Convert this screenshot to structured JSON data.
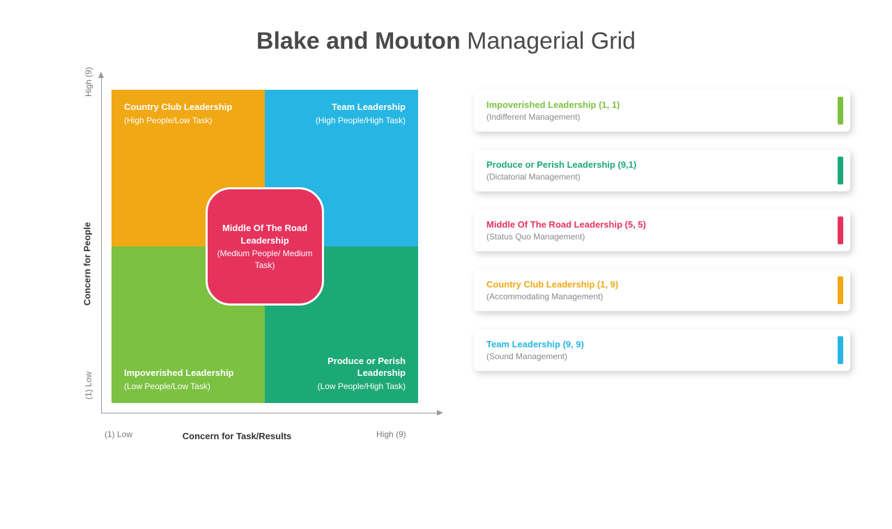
{
  "title_bold": "Blake and Mouton",
  "title_rest": " Managerial Grid",
  "axes": {
    "y_label": "Concern for People",
    "y_high": "High (9)",
    "y_low": "(1) Low",
    "x_label": "Concern for Task/Results",
    "x_low": "(1) Low",
    "x_high": "High (9)",
    "axis_color": "#999999"
  },
  "colors": {
    "tl": "#f0a814",
    "tr": "#27b6e3",
    "bl": "#7cc142",
    "br": "#1da877",
    "center": "#e5335d"
  },
  "quadrants": {
    "tl": {
      "title": "Country Club Leadership",
      "sub": "(High People/Low Task)"
    },
    "tr": {
      "title": "Team Leadership",
      "sub": "(High People/High Task)"
    },
    "bl": {
      "title": "Impoverished Leadership",
      "sub": "(Low People/Low Task)"
    },
    "br": {
      "title": "Produce or Perish Leadership",
      "sub": "(Low People/High Task)"
    },
    "center": {
      "title": "Middle Of The Road Leadership",
      "sub": "(Medium People/ Medium Task)"
    }
  },
  "legend": [
    {
      "title": "Impoverished Leadership (1, 1)",
      "sub": "(Indifferent Management)",
      "color": "#7cc142"
    },
    {
      "title": "Produce or Perish Leadership (9,1)",
      "sub": "(Dictatorial Management)",
      "color": "#1da877"
    },
    {
      "title": "Middle Of The Road Leadership (5, 5)",
      "sub": "(Status Quo Management)",
      "color": "#e5335d"
    },
    {
      "title": "Country Club Leadership (1, 9)",
      "sub": "(Accommodating Management)",
      "color": "#f0a814"
    },
    {
      "title": "Team Leadership (9, 9)",
      "sub": "(Sound Management)",
      "color": "#27b6e3"
    }
  ]
}
